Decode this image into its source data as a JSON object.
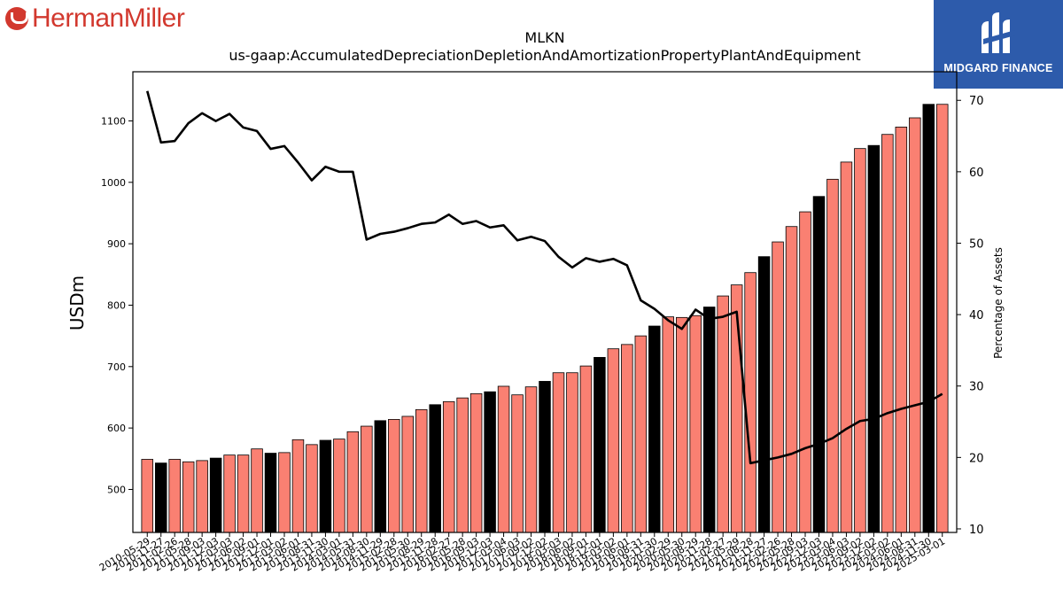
{
  "logos": {
    "left_text": "HermanMiller",
    "right_text": "MIDGARD FINANCE"
  },
  "chart_data": {
    "type": "bar",
    "title": "MLKN",
    "subtitle": "us-gaap:AccumulatedDepreciationDepletionAndAmortizationPropertyPlantAndEquipment",
    "ylabel": "USDm",
    "y2label": "Percentage of Assets",
    "ylim": [
      430,
      1180
    ],
    "y2lim": [
      9.5,
      74
    ],
    "yticks": [
      500,
      600,
      700,
      800,
      900,
      1000,
      1100
    ],
    "y2ticks": [
      10,
      20,
      30,
      40,
      50,
      60,
      70
    ],
    "grid": false,
    "colors": {
      "bar": "#fa8072",
      "bar_highlight": "#000000",
      "line": "#000000"
    },
    "categories": [
      "2010-05-29",
      "2010-11-27",
      "2011-02-26",
      "2011-05-28",
      "2011-09-03",
      "2011-12-03",
      "2012-03-03",
      "2012-06-02",
      "2012-09-01",
      "2012-12-01",
      "2013-03-02",
      "2013-06-01",
      "2013-08-31",
      "2013-11-30",
      "2014-03-01",
      "2014-05-31",
      "2014-08-30",
      "2014-11-29",
      "2015-02-28",
      "2015-05-30",
      "2015-08-29",
      "2015-11-28",
      "2016-02-27",
      "2016-05-28",
      "2016-09-03",
      "2016-12-03",
      "2017-03-04",
      "2017-06-03",
      "2017-09-02",
      "2017-12-02",
      "2018-03-03",
      "2018-06-02",
      "2018-09-01",
      "2018-12-01",
      "2019-03-02",
      "2019-06-01",
      "2019-08-31",
      "2019-11-30",
      "2020-02-29",
      "2020-05-30",
      "2020-08-29",
      "2020-11-28",
      "2021-02-27",
      "2021-05-29",
      "2021-08-28",
      "2021-11-27",
      "2022-02-26",
      "2022-05-28",
      "2022-09-03",
      "2022-12-03",
      "2023-03-04",
      "2023-06-03",
      "2023-09-02",
      "2023-12-02",
      "2024-03-02",
      "2024-06-01",
      "2024-08-31",
      "2024-11-30",
      "2025-03-01"
    ],
    "values": [
      549,
      543,
      549,
      545,
      547,
      551,
      556,
      556,
      566,
      559,
      560,
      581,
      573,
      580,
      582,
      594,
      603,
      612,
      614,
      619,
      630,
      638,
      643,
      649,
      656,
      659,
      668,
      654,
      667,
      676,
      690,
      690,
      701,
      715,
      729,
      736,
      750,
      766,
      781,
      780,
      783,
      797,
      815,
      833,
      853,
      879,
      903,
      928,
      952,
      977,
      1005,
      1033,
      1055,
      1060,
      1078,
      1090,
      1105,
      1127,
      1127
    ],
    "highlighted": [
      false,
      true,
      false,
      false,
      false,
      true,
      false,
      false,
      false,
      true,
      false,
      false,
      false,
      true,
      false,
      false,
      false,
      true,
      false,
      false,
      false,
      true,
      false,
      false,
      false,
      true,
      false,
      false,
      false,
      true,
      false,
      false,
      false,
      true,
      false,
      false,
      false,
      true,
      false,
      false,
      false,
      true,
      false,
      false,
      false,
      true,
      false,
      false,
      false,
      true,
      false,
      false,
      false,
      true,
      false,
      false,
      false,
      true,
      false
    ],
    "series": [
      {
        "values": [
          71.3,
          64.1,
          64.3,
          66.8,
          68.2,
          67.1,
          68.1,
          66.2,
          65.7,
          63.2,
          63.6,
          61.3,
          58.8,
          60.7,
          60.0,
          60.0,
          50.5,
          51.3,
          51.6,
          52.1,
          52.7,
          52.9,
          54.0,
          52.7,
          53.1,
          52.2,
          52.5,
          50.4,
          50.9,
          50.3,
          48.1,
          46.6,
          47.9,
          47.4,
          47.8,
          46.9,
          42.0,
          40.8,
          39.2,
          38.0,
          40.7,
          39.4,
          39.7,
          40.4,
          19.2,
          19.6,
          20.0,
          20.5,
          21.3,
          21.9,
          22.7,
          24.0,
          25.1,
          25.4,
          26.2,
          26.8,
          27.3,
          27.8,
          28.9
        ]
      }
    ]
  }
}
